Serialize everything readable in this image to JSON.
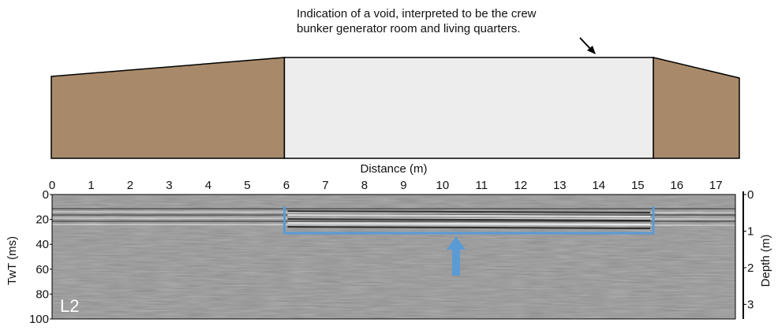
{
  "annotation": [
    "Indication of a void, interpreted to be the crew",
    "bunker generator room and living quarters."
  ],
  "x_axis": {
    "label": "Distance (m)",
    "lim": [
      0,
      17.5
    ],
    "ticks": [
      0,
      1,
      2,
      3,
      4,
      5,
      6,
      7,
      8,
      9,
      10,
      11,
      12,
      13,
      14,
      15,
      16,
      17
    ]
  },
  "y_axis": {
    "label": "TwT (ms)",
    "lim": [
      0,
      100
    ],
    "ticks": [
      0,
      20,
      40,
      60,
      80,
      100
    ]
  },
  "y2_axis": {
    "label": "Depth (m)",
    "lim": [
      0,
      3.4
    ],
    "ticks": [
      0,
      1,
      2,
      3
    ]
  },
  "profile_label": "L2",
  "void_extent": [
    5.95,
    15.4
  ]
}
